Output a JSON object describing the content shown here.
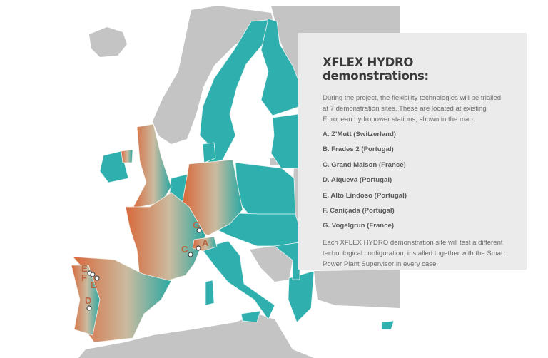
{
  "panel": {
    "title": "XFLEX HYDRO demonstrations:",
    "intro": "During the project, the flexibility technologies will be trialled at 7 demonstration sites. These are located at existing European hydropower stations, shown in the map.",
    "sites": [
      {
        "letter": "A",
        "label": "A. Z'Mutt (Switzerland)"
      },
      {
        "letter": "B",
        "label": "B. Frades 2 (Portugal)"
      },
      {
        "letter": "C",
        "label": "C. Grand Maison (France)"
      },
      {
        "letter": "D",
        "label": "D. Alqueva (Portugal)"
      },
      {
        "letter": "E",
        "label": "E. Alto Lindoso (Portugal)"
      },
      {
        "letter": "F",
        "label": "F. Caniçada (Portugal)"
      },
      {
        "letter": "G",
        "label": "G. Vogelgrun (France)"
      }
    ],
    "footer": "Each XFLEX HYDRO demonstration site will test a different technological configuration, installed together with the Smart Power Plant Supervisor in every case."
  },
  "map": {
    "colors": {
      "eu": "#2fb0ae",
      "non_eu": "#c4c4c4",
      "gradient_start": "#d8683a",
      "gradient_mid": "#cbbba0",
      "gradient_end": "#27a8a2",
      "marker_label": "#b9683f"
    },
    "marker_labels": {
      "A": "A",
      "B": "B",
      "C": "C",
      "D": "D",
      "E": "E",
      "F": "F",
      "G": "G"
    }
  }
}
